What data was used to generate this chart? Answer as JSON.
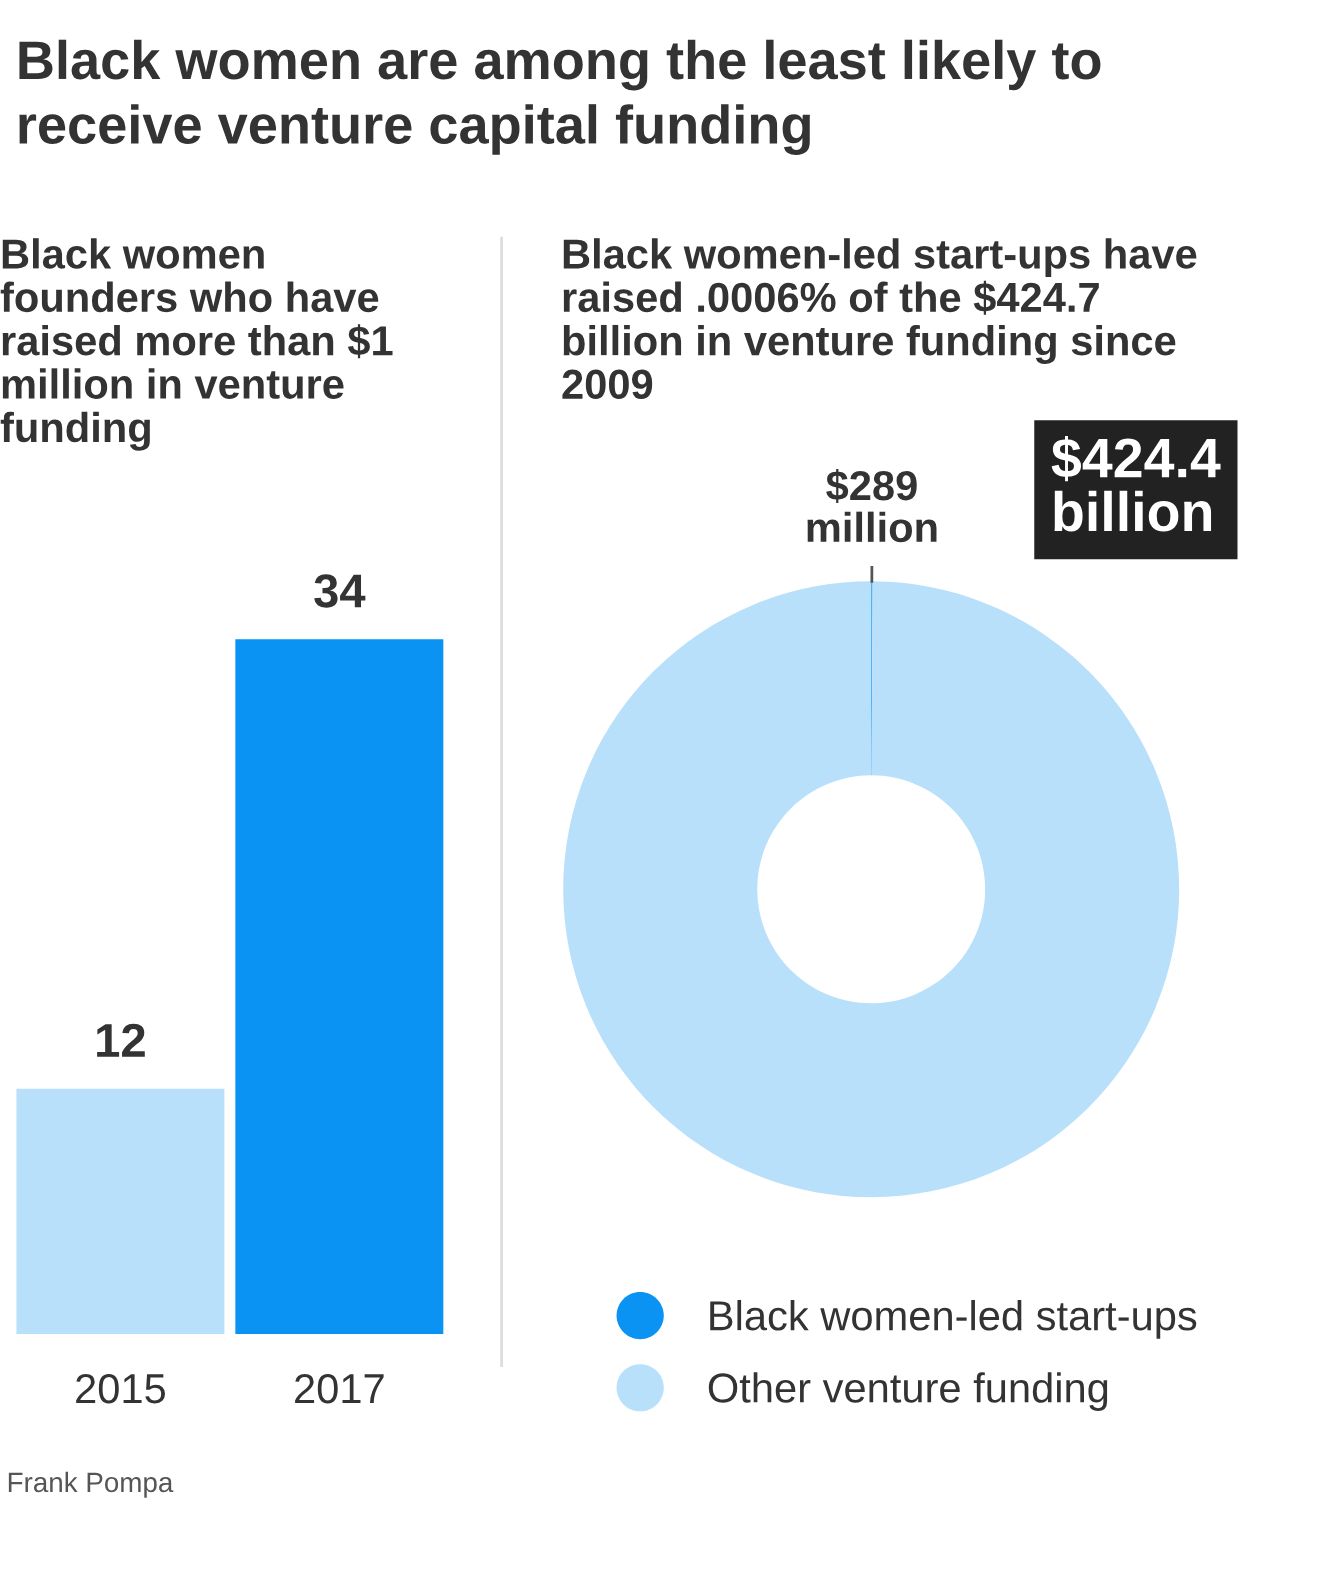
{
  "chart_data": [
    {
      "type": "bar",
      "title": "Black women are among the least likely to receive venture capital funding",
      "subtitle": "Black women founders who have raised more than $1 million in venture funding",
      "categories": [
        "2015",
        "2017"
      ],
      "values": [
        12,
        34
      ],
      "colors": [
        "#b9e0fb",
        "#0a93f2"
      ],
      "data_labels": true,
      "annotations": [
        "Frank Pompa"
      ]
    },
    {
      "type": "donut",
      "title": "Black women-led start-ups have raised .0006% of the $424.7 billion in venture funding since 2009",
      "categories": [
        "Black women-led start-ups",
        "Other venture funding"
      ],
      "values": [
        0.068,
        99.932
      ],
      "colors": [
        "#0a93f2",
        "#b9e0fb"
      ],
      "annotations": [
        "$289 million",
        "$424.4 billion"
      ],
      "legend": "bottom"
    }
  ]
}
